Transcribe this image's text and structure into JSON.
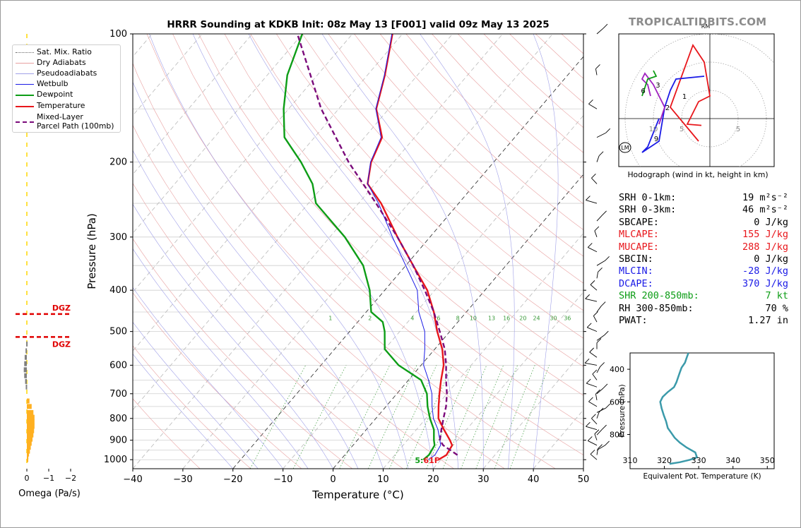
{
  "title": "HRRR Sounding at KDKB Init: 08z May 13 [F001] valid 09z May 13 2025",
  "brand": "TROPICALTIDBITS.COM",
  "colors": {
    "temperature": "#e8161b",
    "dewpoint": "#0d9d16",
    "wetbulb": "#1a1ae6",
    "parcel": "#7a0a7a",
    "dry_adiabat": "#e8a0a0",
    "pseudoadiabat": "#a0a0e8",
    "mixing_ratio": "#3a9a3a",
    "omega_bar": "#ffb020",
    "omega_bar_neg": "#808080",
    "dgz": "#e00000",
    "theta_e": "#3b9aaa"
  },
  "legend": [
    {
      "label": "Sat. Mix. Ratio",
      "style": "dotted-gray"
    },
    {
      "label": "Dry Adiabats",
      "style": "thin-red"
    },
    {
      "label": "Pseudoadiabats",
      "style": "thin-blue"
    },
    {
      "label": "Wetbulb",
      "style": "blue"
    },
    {
      "label": "Dewpoint",
      "style": "green-thick"
    },
    {
      "label": "Temperature",
      "style": "red-thick"
    },
    {
      "label": "Mixed-Layer\nParcel Path (100mb)",
      "style": "purple-dashed"
    }
  ],
  "chart_data": [
    {
      "type": "line",
      "name": "skew-t",
      "xlabel": "Temperature (°C)",
      "ylabel": "Pressure (hPa)",
      "xlim": [
        -40,
        50
      ],
      "ylim": [
        1050,
        100
      ],
      "y_scale": "log",
      "x_ticks": [
        "−40",
        "−30",
        "−20",
        "−10",
        "0",
        "10",
        "20",
        "30",
        "40",
        "50"
      ],
      "y_ticks": [
        "100",
        "200",
        "300",
        "400",
        "500",
        "600",
        "700",
        "800",
        "900",
        "1000"
      ],
      "mixing_ratio_labels": [
        "1",
        "2",
        "4",
        "6",
        "8",
        "10",
        "13",
        "16",
        "20",
        "24",
        "30",
        "36"
      ],
      "surface_label": "5:61F",
      "series": [
        {
          "name": "Temperature",
          "points": [
            [
              1000,
              19.5
            ],
            [
              975,
              20.3
            ],
            [
              925,
              19.8
            ],
            [
              900,
              18.5
            ],
            [
              850,
              15.5
            ],
            [
              800,
              12.5
            ],
            [
              750,
              10.5
            ],
            [
              700,
              8.5
            ],
            [
              650,
              6.5
            ],
            [
              600,
              4.5
            ],
            [
              550,
              1.5
            ],
            [
              500,
              -2.5
            ],
            [
              450,
              -6.5
            ],
            [
              400,
              -11.5
            ],
            [
              350,
              -18.5
            ],
            [
              300,
              -26.5
            ],
            [
              250,
              -35.5
            ],
            [
              225,
              -41.5
            ],
            [
              200,
              -44.5
            ],
            [
              175,
              -46.5
            ],
            [
              150,
              -52.5
            ],
            [
              125,
              -56.5
            ],
            [
              100,
              -62.0
            ]
          ]
        },
        {
          "name": "Dewpoint",
          "points": [
            [
              1000,
              16.5
            ],
            [
              975,
              16.8
            ],
            [
              925,
              16.3
            ],
            [
              900,
              15.3
            ],
            [
              850,
              13.5
            ],
            [
              800,
              10.8
            ],
            [
              750,
              8.3
            ],
            [
              700,
              6.0
            ],
            [
              650,
              2.5
            ],
            [
              600,
              -4.5
            ],
            [
              550,
              -10.0
            ],
            [
              500,
              -13.0
            ],
            [
              475,
              -15.0
            ],
            [
              450,
              -19.0
            ],
            [
              400,
              -23.0
            ],
            [
              350,
              -28.5
            ],
            [
              300,
              -37.0
            ],
            [
              250,
              -48.5
            ],
            [
              225,
              -52.5
            ],
            [
              200,
              -58.5
            ],
            [
              175,
              -66.0
            ],
            [
              150,
              -71.0
            ],
            [
              125,
              -76.0
            ],
            [
              100,
              -80.0
            ]
          ]
        },
        {
          "name": "Wetbulb",
          "points": [
            [
              1000,
              17.5
            ],
            [
              975,
              18.0
            ],
            [
              925,
              17.5
            ],
            [
              900,
              16.5
            ],
            [
              850,
              14.3
            ],
            [
              800,
              11.5
            ],
            [
              750,
              9.2
            ],
            [
              700,
              7.0
            ],
            [
              650,
              4.0
            ],
            [
              600,
              0.5
            ],
            [
              550,
              -2.0
            ],
            [
              500,
              -5.0
            ],
            [
              450,
              -9.5
            ],
            [
              400,
              -13.5
            ],
            [
              350,
              -20.0
            ],
            [
              300,
              -27.5
            ],
            [
              250,
              -36.0
            ],
            [
              225,
              -41.5
            ],
            [
              200,
              -44.6
            ],
            [
              175,
              -46.7
            ],
            [
              150,
              -52.6
            ],
            [
              125,
              -56.6
            ],
            [
              100,
              -62.1
            ]
          ]
        },
        {
          "name": "Mixed-Layer Parcel Path (100mb)",
          "points": [
            [
              975,
              22.5
            ],
            [
              925,
              18.0
            ],
            [
              900,
              16.5
            ],
            [
              850,
              15.0
            ],
            [
              800,
              13.5
            ],
            [
              750,
              12.0
            ],
            [
              700,
              10.0
            ],
            [
              650,
              7.5
            ],
            [
              600,
              5.0
            ],
            [
              550,
              2.0
            ],
            [
              500,
              -2.0
            ],
            [
              450,
              -6.5
            ],
            [
              400,
              -12.0
            ],
            [
              350,
              -18.5
            ],
            [
              300,
              -26.5
            ],
            [
              250,
              -36.5
            ],
            [
              200,
              -49.0
            ],
            [
              150,
              -63.5
            ],
            [
              100,
              -81.0
            ]
          ]
        }
      ]
    },
    {
      "type": "bar",
      "name": "omega",
      "xlabel": "Omega (Pa/s)",
      "x_ticks": [
        "0",
        "−1",
        "−2"
      ],
      "xlim": [
        0.3,
        -2.3
      ],
      "dgz_label": "DGZ",
      "dgz_levels_hpa": [
        455,
        515
      ],
      "bars": [
        [
          1000,
          -0.05
        ],
        [
          985,
          -0.07
        ],
        [
          970,
          -0.1
        ],
        [
          955,
          -0.14
        ],
        [
          935,
          -0.18
        ],
        [
          915,
          -0.22
        ],
        [
          895,
          -0.26
        ],
        [
          875,
          -0.3
        ],
        [
          855,
          -0.33
        ],
        [
          835,
          -0.35
        ],
        [
          815,
          -0.35
        ],
        [
          795,
          -0.35
        ],
        [
          775,
          -0.3
        ],
        [
          750,
          -0.22
        ],
        [
          728,
          -0.12
        ],
        [
          675,
          0.05
        ],
        [
          655,
          0.08
        ],
        [
          635,
          0.12
        ],
        [
          615,
          0.14
        ],
        [
          595,
          0.12
        ],
        [
          575,
          0.1
        ],
        [
          555,
          0.06
        ],
        [
          535,
          0.03
        ]
      ]
    },
    {
      "type": "line",
      "name": "theta-e",
      "xlabel": "Equivalent Pot. Temperature (K)",
      "ylabel": "Pressure (hPa)",
      "x_ticks": [
        "310",
        "320",
        "330",
        "340",
        "350"
      ],
      "y_ticks": [
        "400",
        "600",
        "800"
      ],
      "xlim": [
        310,
        352
      ],
      "ylim": [
        1010,
        300
      ],
      "points": [
        [
          980,
          321.5
        ],
        [
          970,
          324.5
        ],
        [
          955,
          327.5
        ],
        [
          940,
          329.5
        ],
        [
          910,
          329.0
        ],
        [
          880,
          326.5
        ],
        [
          850,
          324.5
        ],
        [
          820,
          323.0
        ],
        [
          790,
          322.0
        ],
        [
          760,
          321.0
        ],
        [
          720,
          320.5
        ],
        [
          680,
          319.8
        ],
        [
          640,
          319.2
        ],
        [
          600,
          318.8
        ],
        [
          570,
          319.5
        ],
        [
          540,
          321.0
        ],
        [
          510,
          322.8
        ],
        [
          480,
          323.5
        ],
        [
          450,
          324.0
        ],
        [
          420,
          324.5
        ],
        [
          390,
          325.0
        ],
        [
          360,
          326.0
        ],
        [
          330,
          326.5
        ],
        [
          300,
          327.0
        ]
      ]
    }
  ],
  "hodograph": {
    "caption": "Hodograph (wind in kt, height in km)",
    "ring_labels": [
      "10",
      "5",
      "5"
    ],
    "rm_label": "RM",
    "lm_label": "LM",
    "height_labels": [
      "1",
      "2",
      "3",
      "6",
      "9"
    ]
  },
  "params": [
    {
      "label": "SRH 0-1km:",
      "value": "19 m²s⁻²",
      "color": "#000000"
    },
    {
      "label": "SRH 0-3km:",
      "value": "46 m²s⁻²",
      "color": "#000000"
    },
    {
      "label": "SBCAPE:",
      "value": "0 J/kg",
      "color": "#000000"
    },
    {
      "label": "MLCAPE:",
      "value": "155 J/kg",
      "color": "#e8161b"
    },
    {
      "label": "MUCAPE:",
      "value": "288 J/kg",
      "color": "#e8161b"
    },
    {
      "label": "SBCIN:",
      "value": "0 J/kg",
      "color": "#000000"
    },
    {
      "label": "MLCIN:",
      "value": "-28 J/kg",
      "color": "#1a1ae6"
    },
    {
      "label": "DCAPE:",
      "value": "370 J/kg",
      "color": "#1a1ae6"
    },
    {
      "label": "SHR 200-850mb:",
      "value": "7 kt",
      "color": "#0d9d16"
    },
    {
      "label": "RH 300-850mb:",
      "value": "70 %",
      "color": "#000000"
    },
    {
      "label": "PWAT:",
      "value": "1.27 in",
      "color": "#000000"
    }
  ]
}
